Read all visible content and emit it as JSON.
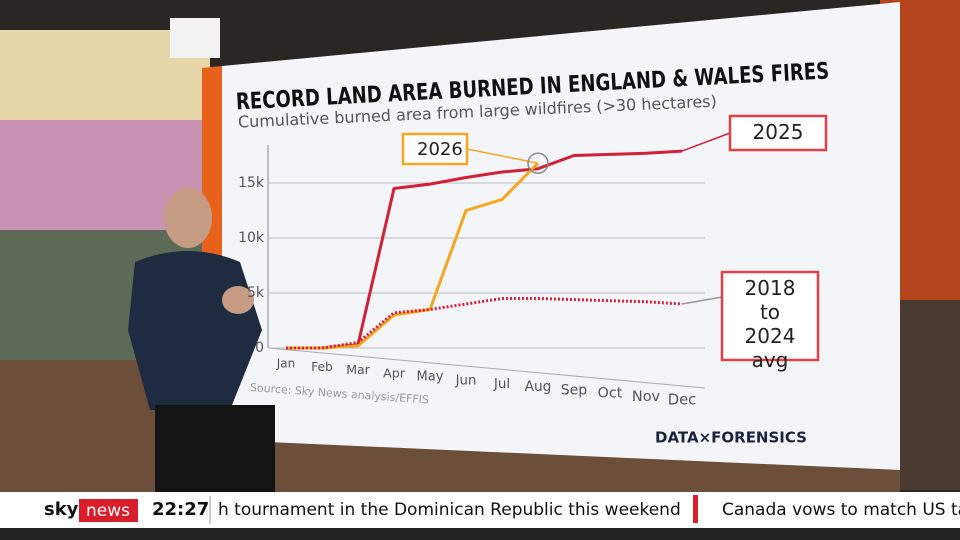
{
  "chart_data": {
    "type": "line",
    "title": "RECORD LAND AREA BURNED IN ENGLAND & WALES FIRES",
    "subtitle": "Cumulative burned area from large wildfires (>30 hectares)",
    "source": "Source: Sky News analysis/EFFIS",
    "brand": "DATA×FORENSICS",
    "categories": [
      "Jan",
      "Feb",
      "Mar",
      "Apr",
      "May",
      "Jun",
      "Jul",
      "Aug",
      "Sep",
      "Oct",
      "Nov",
      "Dec"
    ],
    "series": [
      {
        "name": "2025",
        "color": "#d0203a",
        "style": "solid",
        "values": [
          0,
          0,
          300,
          14500,
          14900,
          15500,
          16000,
          16300,
          17500,
          17600,
          17700,
          17900
        ]
      },
      {
        "name": "2026",
        "color": "#f5a623",
        "style": "solid",
        "values": [
          0,
          0,
          200,
          3000,
          3500,
          12500,
          13500,
          16800,
          null,
          null,
          null,
          null
        ]
      },
      {
        "name": "2018 to 2024 avg",
        "color": "#d0203a",
        "style": "dotted",
        "values": [
          0,
          0,
          500,
          3200,
          3500,
          4000,
          4500,
          4500,
          4400,
          4300,
          4200,
          4000
        ]
      }
    ],
    "ylim": [
      0,
      18000
    ],
    "yticks": [
      0,
      {
        "value": 5000,
        "label": "5k"
      },
      {
        "value": 10000,
        "label": "10k"
      },
      {
        "value": 15000,
        "label": "15k"
      }
    ],
    "grid": true
  },
  "ticker": {
    "brand_sky": "sky",
    "brand_news": "news",
    "time": "22:27",
    "headlines": [
      "h tournament in the Dominican Republic this weekend",
      "Canada vows to match US ta"
    ]
  }
}
